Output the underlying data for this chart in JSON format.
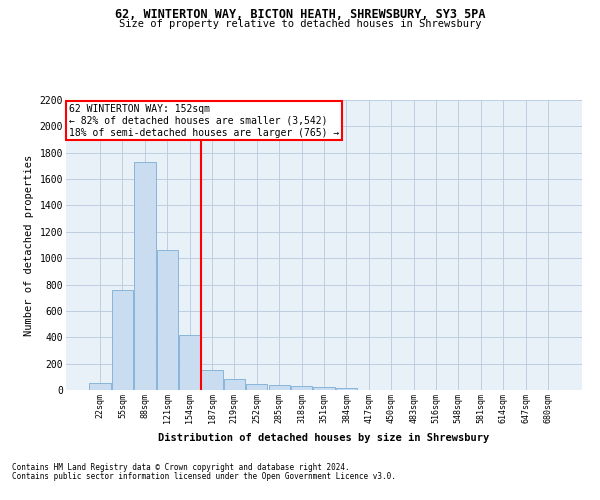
{
  "title1": "62, WINTERTON WAY, BICTON HEATH, SHREWSBURY, SY3 5PA",
  "title2": "Size of property relative to detached houses in Shrewsbury",
  "xlabel": "Distribution of detached houses by size in Shrewsbury",
  "ylabel": "Number of detached properties",
  "bin_labels": [
    "22sqm",
    "55sqm",
    "88sqm",
    "121sqm",
    "154sqm",
    "187sqm",
    "219sqm",
    "252sqm",
    "285sqm",
    "318sqm",
    "351sqm",
    "384sqm",
    "417sqm",
    "450sqm",
    "483sqm",
    "516sqm",
    "548sqm",
    "581sqm",
    "614sqm",
    "647sqm",
    "680sqm"
  ],
  "bar_heights": [
    55,
    760,
    1730,
    1060,
    420,
    150,
    85,
    48,
    40,
    30,
    20,
    15,
    0,
    0,
    0,
    0,
    0,
    0,
    0,
    0,
    0
  ],
  "bar_color": "#c9dcf0",
  "bar_edge_color": "#7badd4",
  "property_line_x": 4.5,
  "annotation_line1": "62 WINTERTON WAY: 152sqm",
  "annotation_line2": "← 82% of detached houses are smaller (3,542)",
  "annotation_line3": "18% of semi-detached houses are larger (765) →",
  "ylim": [
    0,
    2200
  ],
  "yticks": [
    0,
    200,
    400,
    600,
    800,
    1000,
    1200,
    1400,
    1600,
    1800,
    2000,
    2200
  ],
  "footnote1": "Contains HM Land Registry data © Crown copyright and database right 2024.",
  "footnote2": "Contains public sector information licensed under the Open Government Licence v3.0.",
  "plot_bg_color": "#e8f0f8"
}
